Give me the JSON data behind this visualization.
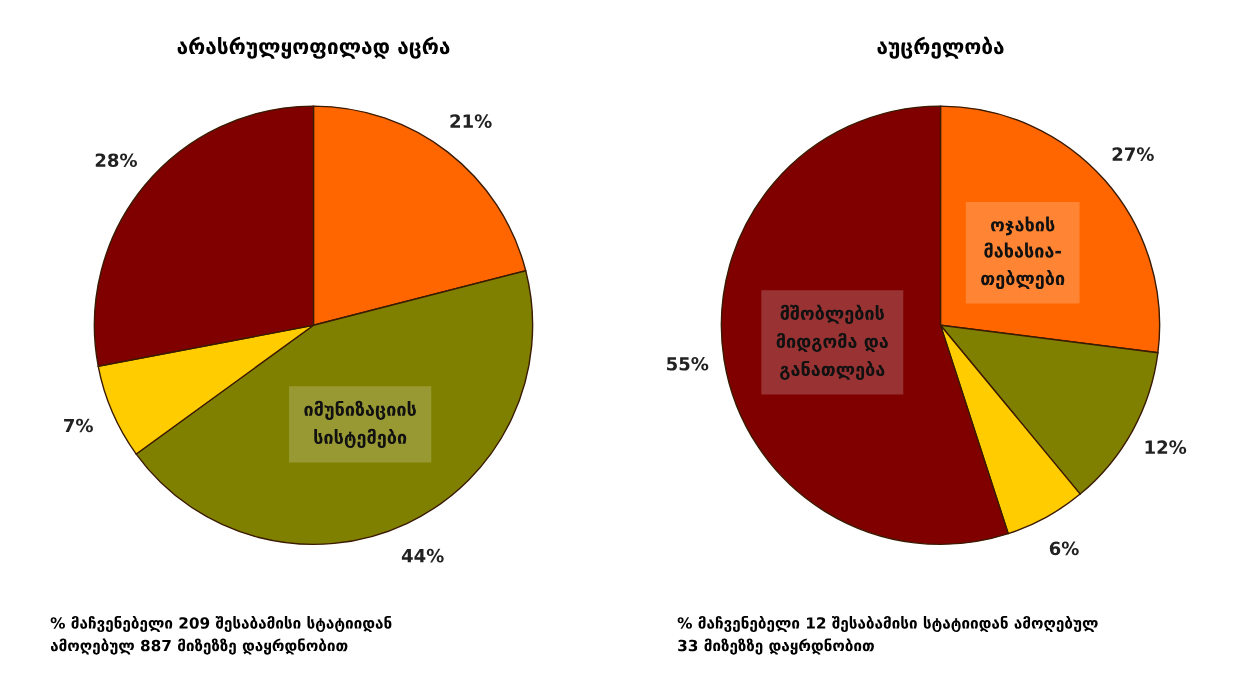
{
  "chart_data": [
    {
      "type": "pie",
      "title": "არასრულყოფილად აცრა",
      "categories": [
        null,
        "იმუნიზაციის\nსისტემები",
        null,
        null
      ],
      "values": [
        21,
        44,
        7,
        28
      ],
      "value_labels": [
        "21%",
        "44%",
        "7%",
        "28%"
      ],
      "colors": [
        "#ff6600",
        "#808000",
        "#ffcc00",
        "#800000"
      ],
      "annotations": [
        "% მაჩვენებელი 209 შესაბამისი სტატიიდან\nამოღებულ 887 მიზეზზე დაყრდნობით"
      ]
    },
    {
      "type": "pie",
      "title": "აუცრელობა",
      "categories": [
        "ოჯახის\nმახასია-\nთებლები",
        null,
        null,
        "მშობლების\nმიდგომა და\nგანათლება"
      ],
      "values": [
        27,
        12,
        6,
        55
      ],
      "value_labels": [
        "27%",
        "12%",
        "6%",
        "55%"
      ],
      "colors": [
        "#ff6600",
        "#808000",
        "#ffcc00",
        "#800000"
      ],
      "annotations": [
        "% მაჩვენებელი 12 შესაბამისი სტატიიდან ამოღებულ\n33 მიზეზზე დაყრდნობით"
      ]
    }
  ]
}
